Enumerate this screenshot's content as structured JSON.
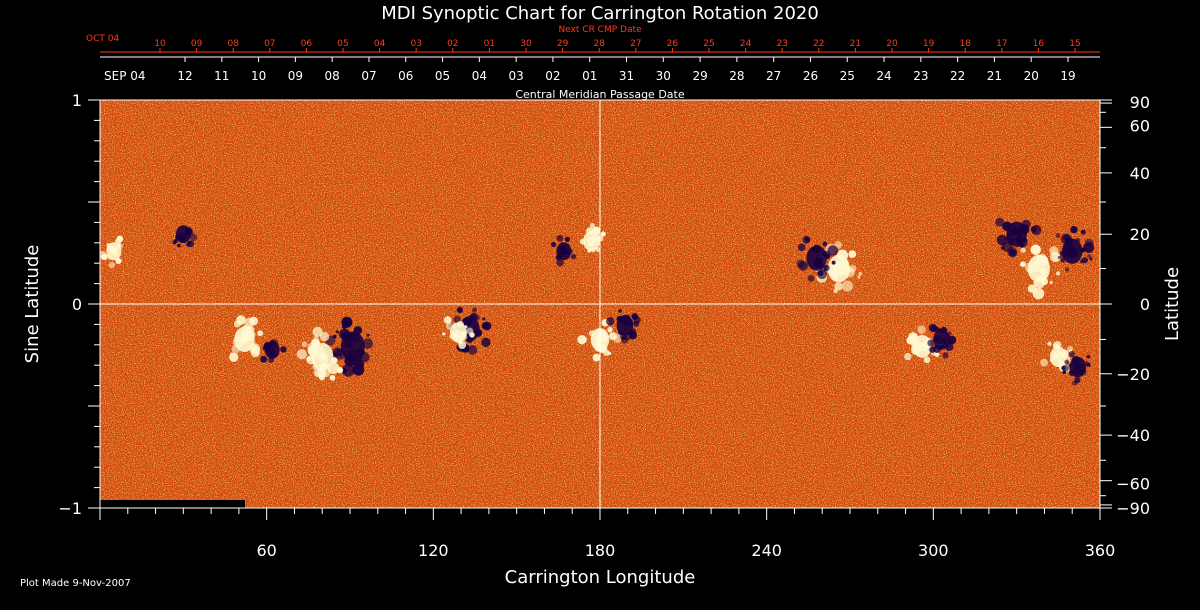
{
  "chart_data": {
    "type": "heatmap",
    "title": "MDI Synoptic Chart for Carrington Rotation 2020",
    "xlabel": "Carrington Longitude",
    "ylabel_left": "Sine Latitude",
    "ylabel_right": "Latitude",
    "xlim": [
      0,
      360
    ],
    "ylim": [
      -1,
      1
    ],
    "x_ticks": [
      60,
      120,
      180,
      240,
      300,
      360
    ],
    "y_ticks_left": [
      1,
      0,
      -1
    ],
    "y_ticks_left_labels": [
      "1",
      "0",
      "−1"
    ],
    "y_ticks_right_deg": [
      90,
      60,
      40,
      20,
      0,
      -20,
      -40,
      -60,
      -90
    ],
    "y_ticks_right_labels": [
      "90",
      "60",
      "40",
      "20",
      "0",
      "−20",
      "−40",
      "−60",
      "−90"
    ],
    "top_axis_label": "Central Meridian Passage Date",
    "top_axis_month": "SEP 04",
    "top_axis_dates": [
      "12",
      "11",
      "10",
      "09",
      "08",
      "07",
      "06",
      "05",
      "04",
      "03",
      "02",
      "01",
      "31",
      "30",
      "29",
      "28",
      "27",
      "26",
      "25",
      "24",
      "23",
      "22",
      "21",
      "20",
      "19"
    ],
    "next_axis_label": "Next CR CMP Date",
    "next_axis_month": "OCT 04",
    "next_axis_dates": [
      "10",
      "09",
      "08",
      "07",
      "06",
      "05",
      "04",
      "03",
      "02",
      "01",
      "30",
      "29",
      "28",
      "27",
      "26",
      "25",
      "24",
      "23",
      "22",
      "21",
      "20",
      "19",
      "18",
      "17",
      "16",
      "15"
    ],
    "reference_lines": {
      "longitude": 180,
      "sine_latitude": 0
    },
    "colors": {
      "background_field": "#e05a10",
      "positive": "#fff8d0",
      "negative": "#180040",
      "next_axis": "#ff3a1a"
    },
    "active_regions": [
      {
        "lon": 91,
        "lat": -12,
        "polarity": "negative",
        "strength": 1.0
      },
      {
        "lon": 80,
        "lat": -15,
        "polarity": "positive",
        "strength": 0.9
      },
      {
        "lon": 133,
        "lat": -7,
        "polarity": "negative",
        "strength": 0.8
      },
      {
        "lon": 129,
        "lat": -8,
        "polarity": "positive",
        "strength": 0.6
      },
      {
        "lon": 177,
        "lat": 18,
        "polarity": "positive",
        "strength": 0.6
      },
      {
        "lon": 167,
        "lat": 15,
        "polarity": "negative",
        "strength": 0.5
      },
      {
        "lon": 180,
        "lat": -10,
        "polarity": "positive",
        "strength": 0.7
      },
      {
        "lon": 189,
        "lat": -6,
        "polarity": "negative",
        "strength": 0.6
      },
      {
        "lon": 266,
        "lat": 10,
        "polarity": "positive",
        "strength": 0.9
      },
      {
        "lon": 258,
        "lat": 13,
        "polarity": "negative",
        "strength": 0.8
      },
      {
        "lon": 296,
        "lat": -12,
        "polarity": "positive",
        "strength": 0.7
      },
      {
        "lon": 303,
        "lat": -10,
        "polarity": "negative",
        "strength": 0.6
      },
      {
        "lon": 330,
        "lat": 20,
        "polarity": "negative",
        "strength": 0.8
      },
      {
        "lon": 338,
        "lat": 10,
        "polarity": "positive",
        "strength": 0.9
      },
      {
        "lon": 350,
        "lat": 15,
        "polarity": "negative",
        "strength": 0.8
      },
      {
        "lon": 52,
        "lat": -10,
        "polarity": "positive",
        "strength": 0.8
      },
      {
        "lon": 62,
        "lat": -13,
        "polarity": "negative",
        "strength": 0.5
      },
      {
        "lon": 30,
        "lat": 20,
        "polarity": "negative",
        "strength": 0.5
      },
      {
        "lon": 5,
        "lat": 15,
        "polarity": "positive",
        "strength": 0.5
      },
      {
        "lon": 345,
        "lat": -15,
        "polarity": "positive",
        "strength": 0.6
      },
      {
        "lon": 352,
        "lat": -18,
        "polarity": "negative",
        "strength": 0.6
      }
    ]
  },
  "footer": {
    "plot_made": "Plot Made  9-Nov-2007"
  }
}
